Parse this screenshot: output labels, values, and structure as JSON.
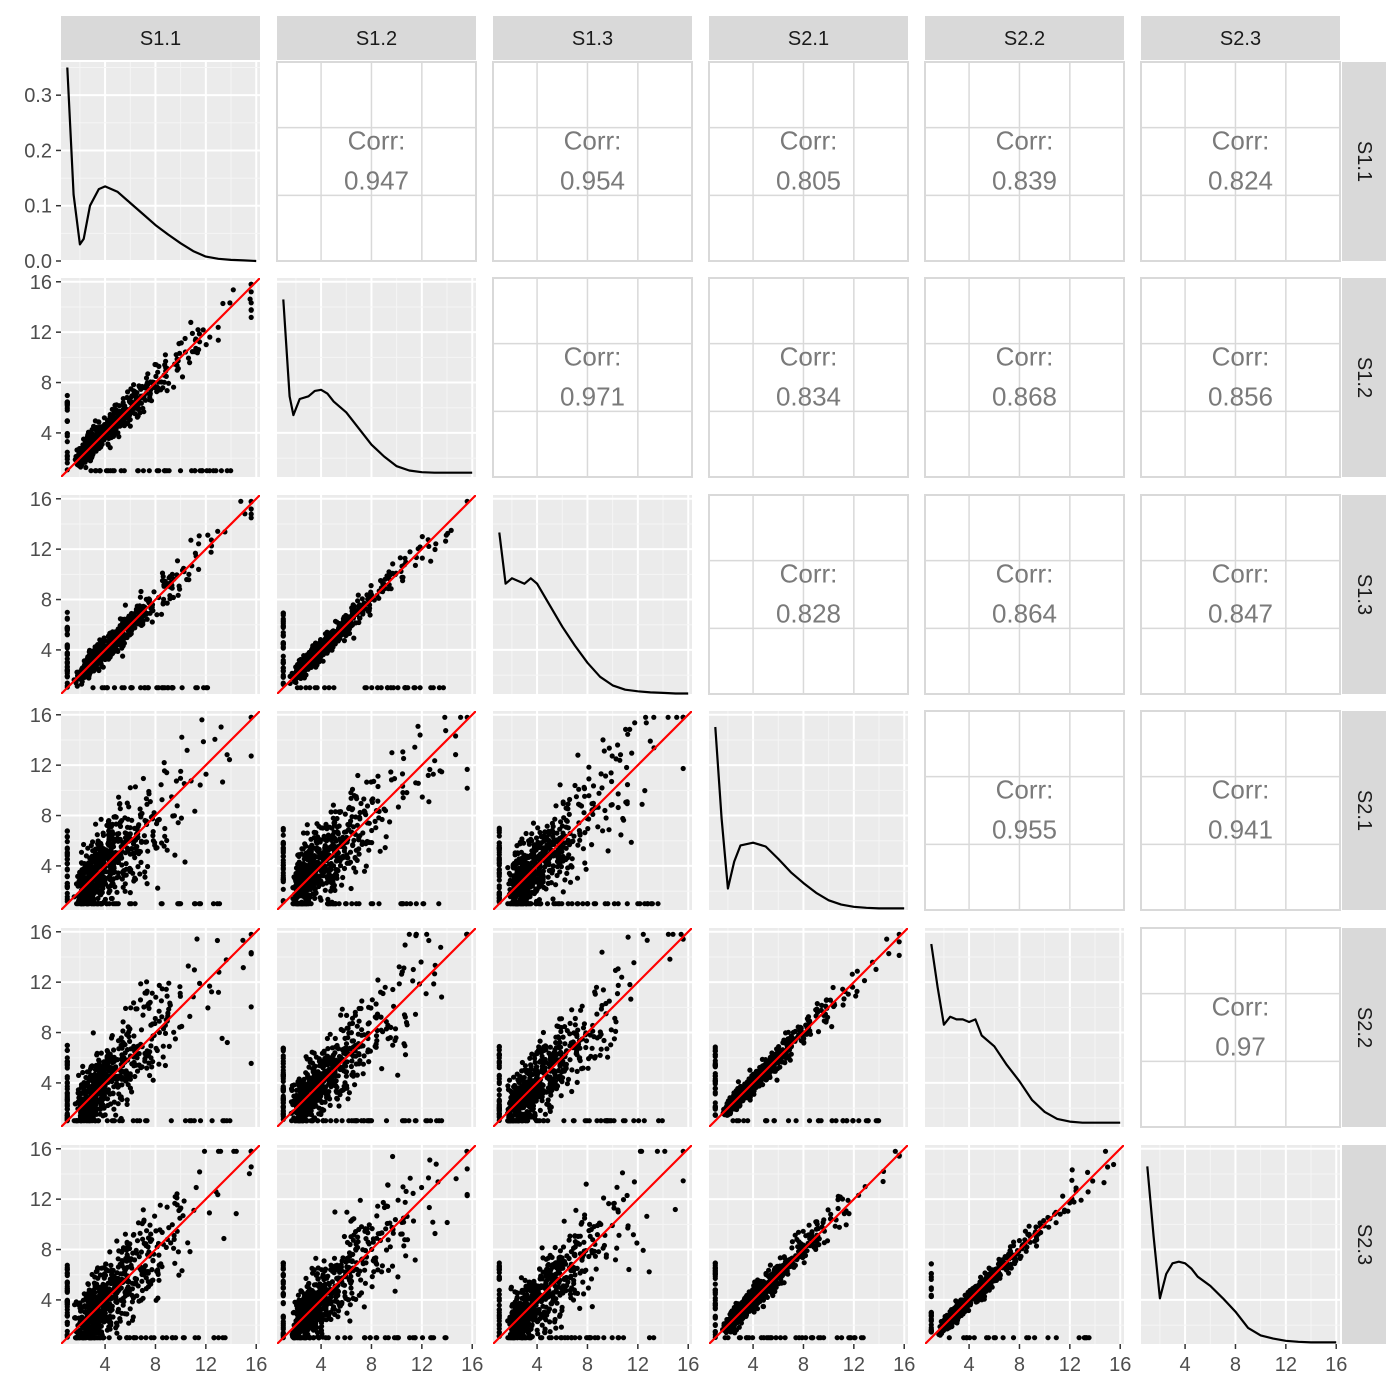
{
  "colors": {
    "panel_background": "#ebebeb",
    "grid_major": "#ffffff",
    "grid_minor": "#f5f5f5",
    "strip_background": "#d9d9d9",
    "upper_grid": "#d9d9d9",
    "point": "#000000",
    "density_line": "#000000",
    "identity_line": "#ff0000",
    "corr_text": "#7a7a7a"
  },
  "chart_data": {
    "type": "scatter",
    "subtype": "scatterplot-matrix",
    "variables": [
      "S1.1",
      "S1.2",
      "S1.3",
      "S2.1",
      "S2.2",
      "S2.3"
    ],
    "axis_range": [
      0.5,
      16.3
    ],
    "axis_ticks": [
      4,
      8,
      12,
      16
    ],
    "density_y_ticks": [
      0.0,
      0.1,
      0.2,
      0.3
    ],
    "density_y_tick_labels": [
      "0.0",
      "0.1",
      "0.2",
      "0.3"
    ],
    "density_y_range": [
      0,
      0.36
    ],
    "identity_line": true,
    "grid": true,
    "corr_label": "Corr:",
    "correlations": [
      {
        "row": "S1.1",
        "col": "S1.2",
        "value": "0.947"
      },
      {
        "row": "S1.1",
        "col": "S1.3",
        "value": "0.954"
      },
      {
        "row": "S1.1",
        "col": "S2.1",
        "value": "0.805"
      },
      {
        "row": "S1.1",
        "col": "S2.2",
        "value": "0.839"
      },
      {
        "row": "S1.1",
        "col": "S2.3",
        "value": "0.824"
      },
      {
        "row": "S1.2",
        "col": "S1.3",
        "value": "0.971"
      },
      {
        "row": "S1.2",
        "col": "S2.1",
        "value": "0.834"
      },
      {
        "row": "S1.2",
        "col": "S2.2",
        "value": "0.868"
      },
      {
        "row": "S1.2",
        "col": "S2.3",
        "value": "0.856"
      },
      {
        "row": "S1.3",
        "col": "S2.1",
        "value": "0.828"
      },
      {
        "row": "S1.3",
        "col": "S2.2",
        "value": "0.864"
      },
      {
        "row": "S1.3",
        "col": "S2.3",
        "value": "0.847"
      },
      {
        "row": "S2.1",
        "col": "S2.2",
        "value": "0.955"
      },
      {
        "row": "S2.1",
        "col": "S2.3",
        "value": "0.941"
      },
      {
        "row": "S2.2",
        "col": "S2.3",
        "value": "0.97"
      }
    ],
    "densities": [
      {
        "variable": "S1.1",
        "x": [
          1.0,
          1.5,
          2.0,
          2.3,
          2.8,
          3.5,
          4.0,
          5.0,
          6.0,
          7.0,
          8.0,
          9.0,
          10.0,
          11.0,
          12.0,
          13.0,
          14.0,
          15.0,
          16.0
        ],
        "y": [
          0.35,
          0.12,
          0.03,
          0.04,
          0.1,
          0.13,
          0.135,
          0.125,
          0.105,
          0.085,
          0.065,
          0.048,
          0.032,
          0.018,
          0.008,
          0.004,
          0.002,
          0.001,
          0.0
        ]
      },
      {
        "variable": "S1.2",
        "x": [
          1.0,
          1.5,
          1.8,
          2.3,
          3.0,
          3.5,
          4.0,
          4.5,
          5.0,
          6.0,
          7.0,
          8.0,
          9.0,
          10.0,
          11.0,
          12.0,
          13.0,
          14.0,
          15.0,
          16.0
        ],
        "y": [
          0.33,
          0.15,
          0.115,
          0.145,
          0.15,
          0.16,
          0.162,
          0.155,
          0.14,
          0.12,
          0.09,
          0.06,
          0.038,
          0.02,
          0.012,
          0.009,
          0.008,
          0.008,
          0.008,
          0.008
        ]
      },
      {
        "variable": "S1.3",
        "x": [
          1.0,
          1.5,
          2.0,
          2.5,
          3.0,
          3.5,
          4.0,
          5.0,
          6.0,
          7.0,
          8.0,
          9.0,
          10.0,
          11.0,
          12.0,
          13.0,
          14.0,
          15.0,
          16.0
        ],
        "y": [
          0.3,
          0.205,
          0.215,
          0.21,
          0.205,
          0.215,
          0.205,
          0.165,
          0.125,
          0.09,
          0.058,
          0.032,
          0.016,
          0.008,
          0.005,
          0.003,
          0.002,
          0.001,
          0.001
        ]
      },
      {
        "variable": "S2.1",
        "x": [
          1.0,
          1.5,
          2.0,
          2.5,
          3.0,
          4.0,
          5.0,
          6.0,
          7.0,
          8.0,
          9.0,
          10.0,
          11.0,
          12.0,
          13.0,
          14.0,
          15.0,
          16.0
        ],
        "y": [
          0.34,
          0.17,
          0.04,
          0.09,
          0.12,
          0.125,
          0.118,
          0.095,
          0.07,
          0.05,
          0.032,
          0.018,
          0.01,
          0.006,
          0.004,
          0.003,
          0.003,
          0.003
        ]
      },
      {
        "variable": "S2.2",
        "x": [
          1.0,
          1.5,
          2.0,
          2.5,
          3.0,
          3.5,
          4.0,
          4.5,
          5.0,
          6.0,
          7.0,
          8.0,
          9.0,
          10.0,
          11.0,
          12.0,
          13.0,
          14.0,
          15.0,
          16.0
        ],
        "y": [
          0.34,
          0.26,
          0.19,
          0.205,
          0.2,
          0.2,
          0.195,
          0.2,
          0.17,
          0.15,
          0.115,
          0.085,
          0.05,
          0.028,
          0.015,
          0.01,
          0.008,
          0.008,
          0.008,
          0.008
        ]
      },
      {
        "variable": "S2.3",
        "x": [
          1.0,
          1.5,
          2.0,
          2.5,
          3.0,
          3.5,
          4.0,
          4.5,
          5.0,
          6.0,
          7.0,
          8.0,
          9.0,
          10.0,
          11.0,
          12.0,
          13.0,
          14.0,
          15.0,
          16.0
        ],
        "y": [
          0.33,
          0.2,
          0.085,
          0.13,
          0.15,
          0.153,
          0.15,
          0.14,
          0.125,
          0.108,
          0.085,
          0.06,
          0.03,
          0.016,
          0.01,
          0.006,
          0.004,
          0.003,
          0.003,
          0.003
        ]
      }
    ],
    "scatter_trend": [
      {
        "row": "S1.2",
        "col": "S1.1",
        "spread": 0.7
      },
      {
        "row": "S1.3",
        "col": "S1.1",
        "spread": 0.6
      },
      {
        "row": "S1.3",
        "col": "S1.2",
        "spread": 0.5
      },
      {
        "row": "S2.1",
        "col": "S1.1",
        "spread": 1.9
      },
      {
        "row": "S2.1",
        "col": "S1.2",
        "spread": 1.8
      },
      {
        "row": "S2.1",
        "col": "S1.3",
        "spread": 1.8
      },
      {
        "row": "S2.2",
        "col": "S1.1",
        "spread": 1.7
      },
      {
        "row": "S2.2",
        "col": "S1.2",
        "spread": 1.6
      },
      {
        "row": "S2.2",
        "col": "S1.3",
        "spread": 1.6
      },
      {
        "row": "S2.2",
        "col": "S2.1",
        "spread": 0.5
      },
      {
        "row": "S2.3",
        "col": "S1.1",
        "spread": 1.8
      },
      {
        "row": "S2.3",
        "col": "S1.2",
        "spread": 1.7
      },
      {
        "row": "S2.3",
        "col": "S1.3",
        "spread": 1.7
      },
      {
        "row": "S2.3",
        "col": "S2.1",
        "spread": 0.6
      },
      {
        "row": "S2.3",
        "col": "S2.2",
        "spread": 0.45
      }
    ]
  }
}
